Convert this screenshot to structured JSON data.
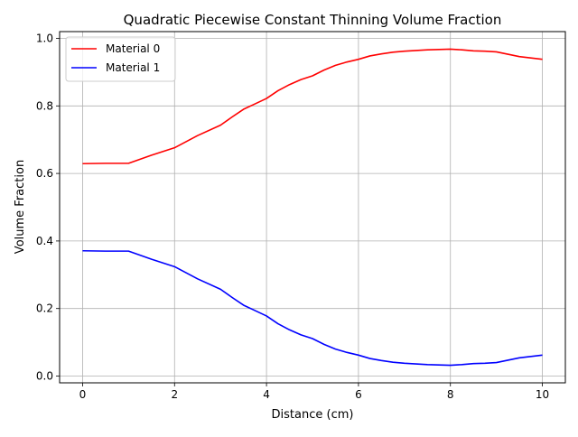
{
  "chart_data": {
    "type": "line",
    "title": "Quadratic Piecewise Constant Thinning Volume Fraction",
    "xlabel": "Distance (cm)",
    "ylabel": "Volume Fraction",
    "xlim": [
      -0.5,
      10.5
    ],
    "ylim": [
      -0.02,
      1.02
    ],
    "xticks": [
      0,
      2,
      4,
      6,
      8,
      10
    ],
    "xtick_labels": [
      "0",
      "2",
      "4",
      "6",
      "8",
      "10"
    ],
    "yticks": [
      0.0,
      0.2,
      0.4,
      0.6,
      0.8,
      1.0
    ],
    "ytick_labels": [
      "0.0",
      "0.2",
      "0.4",
      "0.6",
      "0.8",
      "1.0"
    ],
    "grid": true,
    "legend_position": "top-left",
    "series": [
      {
        "name": "Material 0",
        "color": "#ff0000",
        "x": [
          0,
          0.5,
          1,
          1.5,
          2,
          2.5,
          3,
          3.25,
          3.5,
          3.75,
          4,
          4.25,
          4.5,
          4.75,
          5,
          5.25,
          5.5,
          5.75,
          6,
          6.25,
          6.5,
          6.75,
          7,
          7.25,
          7.5,
          7.75,
          8,
          8.25,
          8.5,
          8.75,
          9,
          9.25,
          9.5,
          9.75,
          10
        ],
        "y": [
          0.629,
          0.63,
          0.63,
          0.654,
          0.676,
          0.712,
          0.743,
          0.767,
          0.79,
          0.806,
          0.822,
          0.845,
          0.863,
          0.878,
          0.889,
          0.906,
          0.92,
          0.93,
          0.938,
          0.948,
          0.954,
          0.959,
          0.962,
          0.964,
          0.966,
          0.967,
          0.968,
          0.966,
          0.963,
          0.962,
          0.96,
          0.953,
          0.946,
          0.942,
          0.938
        ]
      },
      {
        "name": "Material 1",
        "color": "#0000ff",
        "x": [
          0,
          0.5,
          1,
          1.5,
          2,
          2.5,
          3,
          3.25,
          3.5,
          3.75,
          4,
          4.25,
          4.5,
          4.75,
          5,
          5.25,
          5.5,
          5.75,
          6,
          6.25,
          6.5,
          6.75,
          7,
          7.25,
          7.5,
          7.75,
          8,
          8.25,
          8.5,
          8.75,
          9,
          9.25,
          9.5,
          9.75,
          10
        ],
        "y": [
          0.371,
          0.37,
          0.37,
          0.346,
          0.324,
          0.288,
          0.257,
          0.233,
          0.21,
          0.194,
          0.178,
          0.155,
          0.137,
          0.122,
          0.111,
          0.094,
          0.08,
          0.07,
          0.062,
          0.052,
          0.046,
          0.041,
          0.038,
          0.036,
          0.034,
          0.033,
          0.032,
          0.034,
          0.037,
          0.038,
          0.04,
          0.047,
          0.054,
          0.058,
          0.062
        ]
      }
    ]
  }
}
